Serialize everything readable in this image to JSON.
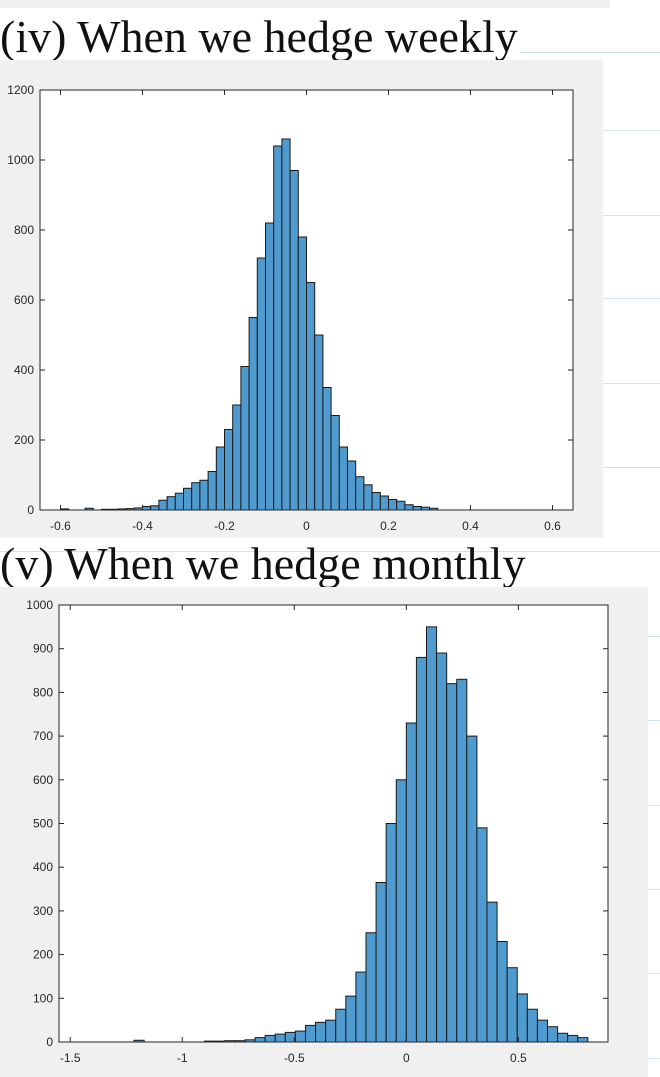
{
  "headings": {
    "weekly": "(iv) When we hedge weekly",
    "monthly": "(v) When we hedge monthly"
  },
  "colors": {
    "bar_fill": "#4f9bd0",
    "bar_edge": "#1a1a1a",
    "panel_bg": "#f0f0f0",
    "axes_bg": "#ffffff"
  },
  "chart_data": [
    {
      "type": "bar",
      "title": "",
      "xlabel": "",
      "ylabel": "",
      "xlim": [
        -0.65,
        0.65
      ],
      "ylim": [
        0,
        1200
      ],
      "xticks": [
        -0.6,
        -0.4,
        -0.2,
        0,
        0.2,
        0.4,
        0.6
      ],
      "xtick_labels": [
        "-0.6",
        "-0.4",
        "-0.2",
        "0",
        "0.2",
        "0.4",
        "0.6"
      ],
      "yticks": [
        0,
        200,
        400,
        600,
        800,
        1000,
        1200
      ],
      "ytick_labels": [
        "0",
        "200",
        "400",
        "600",
        "800",
        "1000",
        "1200"
      ],
      "grid": false,
      "bin_width": 0.02,
      "bins_start": -0.62,
      "values": [
        0,
        3,
        0,
        0,
        5,
        0,
        2,
        2,
        3,
        4,
        6,
        10,
        12,
        28,
        38,
        48,
        62,
        78,
        85,
        110,
        180,
        230,
        300,
        410,
        550,
        720,
        820,
        1040,
        1060,
        970,
        780,
        650,
        500,
        350,
        270,
        180,
        140,
        95,
        72,
        50,
        40,
        30,
        25,
        15,
        10,
        8,
        5,
        0,
        0,
        0,
        0,
        0,
        0,
        0,
        0,
        0,
        0,
        0,
        0,
        0,
        0,
        0
      ]
    },
    {
      "type": "bar",
      "title": "",
      "xlabel": "",
      "ylabel": "",
      "xlim": [
        -1.55,
        0.9
      ],
      "ylim": [
        0,
        1000
      ],
      "xticks": [
        -1.5,
        -1,
        -0.5,
        0,
        0.5
      ],
      "xtick_labels": [
        "-1.5",
        "-1",
        "-0.5",
        "0",
        "0.5"
      ],
      "yticks": [
        0,
        100,
        200,
        300,
        400,
        500,
        600,
        700,
        800,
        900,
        1000
      ],
      "ytick_labels": [
        "0",
        "100",
        "200",
        "300",
        "400",
        "500",
        "600",
        "700",
        "800",
        "900",
        "1000"
      ],
      "grid": false,
      "bin_width": 0.045,
      "bins_start": -1.215,
      "values": [
        4,
        0,
        0,
        0,
        0,
        0,
        0,
        2,
        2,
        3,
        3,
        5,
        10,
        15,
        18,
        22,
        25,
        38,
        45,
        50,
        75,
        105,
        160,
        250,
        365,
        500,
        600,
        730,
        880,
        950,
        890,
        820,
        830,
        700,
        490,
        320,
        230,
        170,
        110,
        75,
        50,
        35,
        20,
        15,
        10
      ]
    }
  ]
}
